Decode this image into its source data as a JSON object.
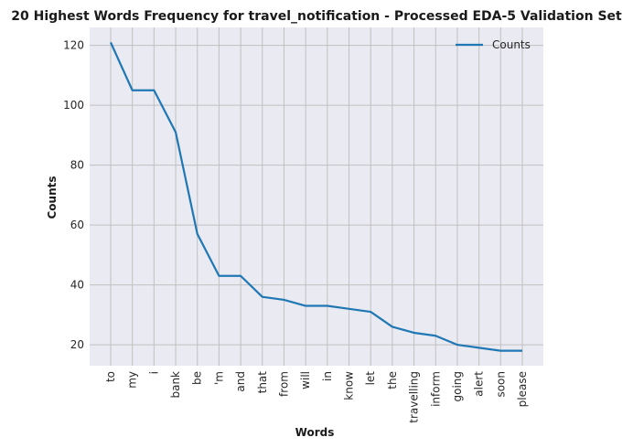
{
  "chart_data": {
    "type": "line",
    "title": "20 Highest Words Frequency for travel_notification - Processed EDA-5 Validation Set",
    "xlabel": "Words",
    "ylabel": "Counts",
    "categories": [
      "to",
      "my",
      "i",
      "bank",
      "be",
      "'m",
      "and",
      "that",
      "from",
      "will",
      "in",
      "know",
      "let",
      "the",
      "travelling",
      "inform",
      "going",
      "alert",
      "soon",
      "please"
    ],
    "series": [
      {
        "name": "Counts",
        "values": [
          121,
          105,
          105,
          91,
          57,
          43,
          43,
          36,
          35,
          33,
          33,
          32,
          31,
          26,
          24,
          23,
          20,
          19,
          18,
          18
        ],
        "color": "#1f77b4"
      }
    ],
    "ylim": [
      13,
      126
    ],
    "yticks": [
      20,
      40,
      60,
      80,
      100,
      120
    ],
    "grid": true,
    "legend": "top-right",
    "background": "#eaeaf2",
    "grid_color": "#c0c0c0"
  }
}
